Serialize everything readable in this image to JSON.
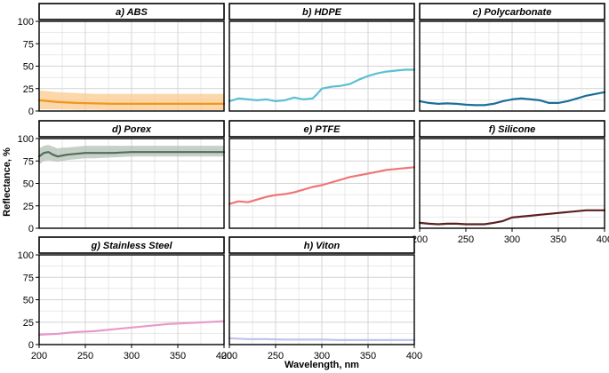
{
  "figure": {
    "xlabel": "Wavelength, nm",
    "ylabel": "Reflectance, %"
  },
  "chart_data": [
    {
      "type": "line",
      "title": "a) ABS",
      "color": "#f2961e",
      "band_color": "#f9c98e",
      "xlim": [
        200,
        400
      ],
      "ylim": [
        0,
        100
      ],
      "x_ticks": [
        200,
        250,
        300,
        350,
        400
      ],
      "y_ticks": [
        0,
        25,
        50,
        75,
        100
      ],
      "x": [
        200,
        210,
        220,
        240,
        260,
        280,
        300,
        320,
        340,
        360,
        380,
        400
      ],
      "y": [
        12,
        11,
        10,
        9,
        8.5,
        8,
        8,
        8,
        8,
        8,
        8,
        8
      ],
      "band_lower": [
        2,
        2,
        2,
        1.5,
        1.5,
        1,
        1,
        1,
        1,
        1,
        1,
        1
      ],
      "band_upper": [
        23,
        22,
        21,
        20,
        19,
        19,
        19,
        19,
        19,
        19,
        19,
        19
      ]
    },
    {
      "type": "line",
      "title": "b) HDPE",
      "color": "#5bbfd3",
      "xlim": [
        200,
        400
      ],
      "ylim": [
        0,
        100
      ],
      "x_ticks": [
        200,
        250,
        300,
        350,
        400
      ],
      "y_ticks": [
        0,
        25,
        50,
        75,
        100
      ],
      "x": [
        200,
        210,
        220,
        230,
        240,
        250,
        260,
        270,
        280,
        290,
        295,
        300,
        310,
        320,
        330,
        340,
        350,
        360,
        370,
        380,
        390,
        400
      ],
      "y": [
        11,
        14,
        13,
        12,
        13,
        11,
        12,
        15,
        13,
        14,
        19,
        25,
        27,
        28,
        30,
        35,
        39,
        42,
        44,
        45,
        46,
        46
      ]
    },
    {
      "type": "line",
      "title": "c) Polycarbonate",
      "color": "#1a6e99",
      "xlim": [
        200,
        400
      ],
      "ylim": [
        0,
        100
      ],
      "x_ticks": [
        200,
        250,
        300,
        350,
        400
      ],
      "y_ticks": [
        0,
        25,
        50,
        75,
        100
      ],
      "x": [
        200,
        210,
        220,
        230,
        240,
        250,
        260,
        270,
        280,
        290,
        300,
        310,
        320,
        330,
        340,
        350,
        360,
        370,
        380,
        390,
        400
      ],
      "y": [
        11,
        9,
        8,
        8.5,
        8,
        7,
        6.5,
        6.5,
        8,
        11,
        13,
        14,
        13,
        12,
        9,
        9,
        11,
        14,
        17,
        19,
        21
      ]
    },
    {
      "type": "line",
      "title": "d) Porex",
      "color": "#556b5c",
      "band_color": "#b3c2b6",
      "xlim": [
        200,
        400
      ],
      "ylim": [
        0,
        100
      ],
      "x_ticks": [
        200,
        250,
        300,
        350,
        400
      ],
      "y_ticks": [
        0,
        25,
        50,
        75,
        100
      ],
      "x": [
        200,
        205,
        210,
        215,
        220,
        225,
        230,
        240,
        250,
        260,
        280,
        300,
        320,
        340,
        360,
        380,
        400
      ],
      "y": [
        80,
        84,
        85,
        82,
        80,
        81,
        82,
        83,
        84,
        84,
        84,
        85,
        85,
        85,
        85,
        85,
        85
      ],
      "band_lower": [
        71,
        75,
        76,
        75,
        74,
        75,
        76,
        77,
        78,
        78,
        79,
        80,
        80,
        80,
        80,
        80,
        80
      ],
      "band_upper": [
        89,
        92,
        93,
        91,
        89,
        90,
        90,
        91,
        92,
        92,
        92,
        92,
        92,
        92,
        92,
        92,
        92
      ]
    },
    {
      "type": "line",
      "title": "e) PTFE",
      "color": "#f07474",
      "xlim": [
        200,
        400
      ],
      "ylim": [
        0,
        100
      ],
      "x_ticks": [
        200,
        250,
        300,
        350,
        400
      ],
      "y_ticks": [
        0,
        25,
        50,
        75,
        100
      ],
      "x": [
        200,
        210,
        220,
        230,
        240,
        250,
        260,
        270,
        280,
        290,
        300,
        310,
        320,
        330,
        340,
        350,
        360,
        370,
        380,
        390,
        400
      ],
      "y": [
        27,
        30,
        29,
        32,
        35,
        37,
        38,
        40,
        43,
        46,
        48,
        51,
        54,
        57,
        59,
        61,
        63,
        65,
        66,
        67,
        68
      ]
    },
    {
      "type": "line",
      "title": "f) Silicone",
      "color": "#5c1f1f",
      "xlim": [
        200,
        400
      ],
      "ylim": [
        0,
        100
      ],
      "x_ticks": [
        200,
        250,
        300,
        350,
        400
      ],
      "y_ticks": [
        0,
        25,
        50,
        75,
        100
      ],
      "x": [
        200,
        210,
        220,
        230,
        240,
        250,
        260,
        270,
        280,
        290,
        300,
        310,
        320,
        330,
        340,
        350,
        360,
        370,
        380,
        390,
        400
      ],
      "y": [
        6,
        5,
        4.5,
        5,
        5,
        4.5,
        4.5,
        4.5,
        6,
        8,
        12,
        13,
        14,
        15,
        16,
        17,
        18,
        19,
        20,
        20,
        20
      ]
    },
    {
      "type": "line",
      "title": "g) Stainless Steel",
      "color": "#e79ac8",
      "xlim": [
        200,
        400
      ],
      "ylim": [
        0,
        100
      ],
      "x_ticks": [
        200,
        250,
        300,
        350,
        400
      ],
      "y_ticks": [
        0,
        25,
        50,
        75,
        100
      ],
      "x": [
        200,
        220,
        240,
        260,
        280,
        300,
        320,
        340,
        360,
        380,
        400
      ],
      "y": [
        11,
        12,
        14,
        15,
        17,
        19,
        21,
        23,
        24,
        25,
        26
      ]
    },
    {
      "type": "line",
      "title": "h) Viton",
      "color": "#c2c4ee",
      "xlim": [
        200,
        400
      ],
      "ylim": [
        0,
        100
      ],
      "x_ticks": [
        200,
        250,
        300,
        350,
        400
      ],
      "y_ticks": [
        0,
        25,
        50,
        75,
        100
      ],
      "x": [
        200,
        220,
        240,
        260,
        280,
        300,
        320,
        340,
        360,
        380,
        400
      ],
      "y": [
        7,
        6,
        6,
        5.5,
        5.5,
        5.5,
        5,
        5,
        5,
        5,
        5
      ]
    }
  ]
}
